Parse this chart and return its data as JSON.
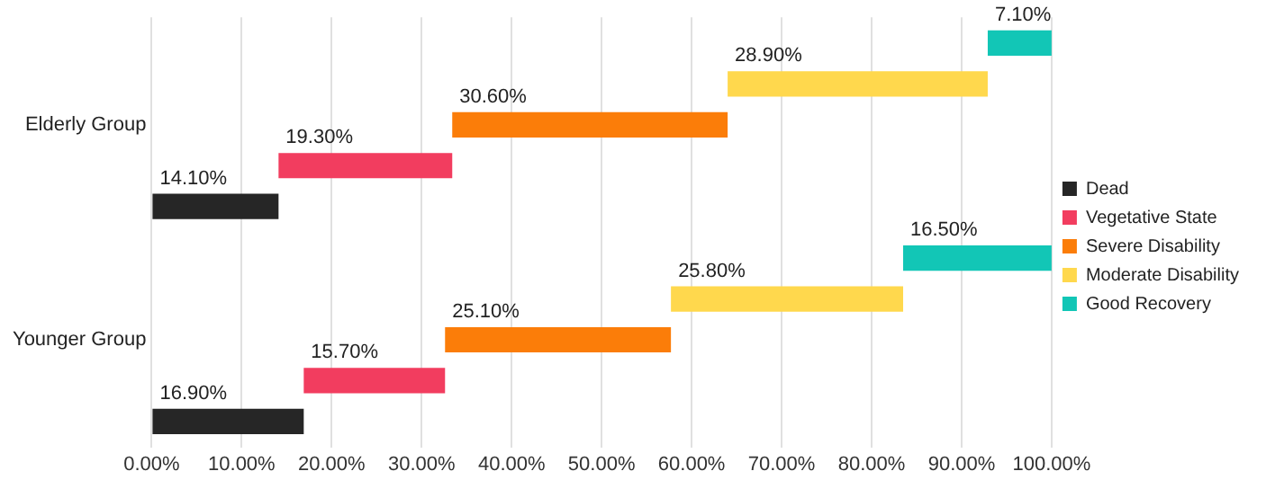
{
  "chart_data": {
    "type": "bar",
    "orientation": "horizontal",
    "categories": [
      "Elderly Group",
      "Younger Group"
    ],
    "series": [
      {
        "name": "Dead",
        "color": "#262626",
        "base": [
          0,
          0
        ],
        "values": [
          14.1,
          16.9
        ],
        "value_labels": [
          "14.10%",
          "16.90%"
        ]
      },
      {
        "name": "Vegetative State",
        "color": "#f23d5f",
        "base": [
          14.1,
          16.9
        ],
        "values": [
          19.3,
          15.7
        ],
        "value_labels": [
          "19.30%",
          "15.70%"
        ]
      },
      {
        "name": "Severe Disability",
        "color": "#fb7d09",
        "base": [
          33.4,
          32.6
        ],
        "values": [
          30.6,
          25.1
        ],
        "value_labels": [
          "30.60%",
          "25.10%"
        ]
      },
      {
        "name": "Moderate Disability",
        "color": "#ffd84d",
        "base": [
          64,
          57.7
        ],
        "values": [
          28.9,
          25.8
        ],
        "value_labels": [
          "28.90%",
          "25.80%"
        ]
      },
      {
        "name": "Good Recovery",
        "color": "#12c6b6",
        "base": [
          92.9,
          83.5
        ],
        "values": [
          7.1,
          16.5
        ],
        "value_labels": [
          "7.10%",
          "16.50%"
        ]
      }
    ],
    "xlim": [
      0,
      100
    ],
    "xticks": [
      {
        "value": 0,
        "label": "0.00%"
      },
      {
        "value": 10,
        "label": "10.00%"
      },
      {
        "value": 20,
        "label": "20.00%"
      },
      {
        "value": 30,
        "label": "30.00%"
      },
      {
        "value": 40,
        "label": "40.00%"
      },
      {
        "value": 50,
        "label": "50.00%"
      },
      {
        "value": 60,
        "label": "60.00%"
      },
      {
        "value": 70,
        "label": "70.00%"
      },
      {
        "value": 80,
        "label": "80.00%"
      },
      {
        "value": 90,
        "label": "90.00%"
      },
      {
        "value": 100,
        "label": "100.00%"
      }
    ],
    "grid": "x",
    "legend": "right"
  }
}
